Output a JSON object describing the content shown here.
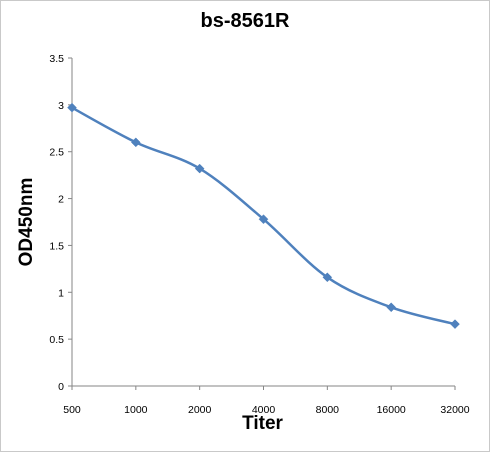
{
  "chart_data": {
    "type": "line",
    "title": "bs-8561R",
    "xlabel": "Titer",
    "ylabel": "OD450nm",
    "categories": [
      "500",
      "1000",
      "2000",
      "4000",
      "8000",
      "16000",
      "32000"
    ],
    "series": [
      {
        "values": [
          2.97,
          2.6,
          2.32,
          1.78,
          1.16,
          0.84,
          0.66
        ]
      }
    ],
    "ylim": [
      0,
      3.5
    ],
    "yticks": [
      "0",
      "0.5",
      "1",
      "1.5",
      "2",
      "2.5",
      "3",
      "3.5"
    ],
    "grid": false,
    "legend": false,
    "colors": {
      "series": "#4f81bd",
      "axis": "#868686"
    }
  }
}
